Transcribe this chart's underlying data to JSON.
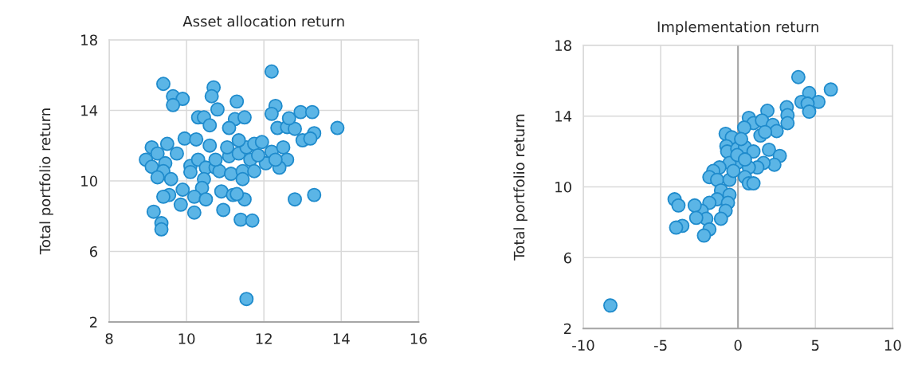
{
  "chart_data": [
    {
      "type": "scatter",
      "title": "Asset allocation return",
      "ylabel": "Total portfolio return",
      "xlim": [
        8,
        16
      ],
      "xticks": [
        8,
        10,
        12,
        14,
        16
      ],
      "ylim": [
        2,
        18
      ],
      "yticks": [
        2,
        6,
        10,
        14,
        18
      ],
      "grid": true,
      "marker": "circle",
      "series": [
        {
          "color": "#5bb5e6",
          "x": [
            12.2,
            9.4,
            10.7,
            9.65,
            9.9,
            9.65,
            10.65,
            10.8,
            11.3,
            12.3,
            12.2,
            12.95,
            13.25,
            10.3,
            10.45,
            10.6,
            11.25,
            11.5,
            11.1,
            12.35,
            12.6,
            12.8,
            12.65,
            13.3,
            13.9,
            13.0,
            13.2,
            9.95,
            10.25,
            10.6,
            9.5,
            9.1,
            9.25,
            9.75,
            8.95,
            9.1,
            9.45,
            9.4,
            9.25,
            9.6,
            10.1,
            10.3,
            10.5,
            10.1,
            10.45,
            10.75,
            10.85,
            11.15,
            11.1,
            11.35,
            11.55,
            11.75,
            11.95,
            11.65,
            11.45,
            11.75,
            12.2,
            12.5,
            12.6,
            12.4,
            12.05,
            11.45,
            10.4,
            9.9,
            9.55,
            9.4,
            10.2,
            10.5,
            10.9,
            11.2,
            11.5,
            11.3,
            9.85,
            9.15,
            10.2,
            10.95,
            9.35,
            9.35,
            11.4,
            11.7,
            12.8,
            13.3,
            11.55,
            11.35,
            11.05,
            11.85,
            10.75,
            12.3
          ],
          "values": [
            16.2,
            15.5,
            15.3,
            14.8,
            14.65,
            14.3,
            14.8,
            14.05,
            14.5,
            14.25,
            13.8,
            13.9,
            13.9,
            13.6,
            13.6,
            13.15,
            13.5,
            13.6,
            13.0,
            13.0,
            13.05,
            12.95,
            13.55,
            12.7,
            13.0,
            12.3,
            12.4,
            12.4,
            12.35,
            12.0,
            12.1,
            11.9,
            11.55,
            11.55,
            11.2,
            10.8,
            11.0,
            10.55,
            10.2,
            10.1,
            10.85,
            11.2,
            10.75,
            10.5,
            10.1,
            10.75,
            10.55,
            10.4,
            11.4,
            11.55,
            11.9,
            12.1,
            12.2,
            11.2,
            10.55,
            10.55,
            11.65,
            11.9,
            11.2,
            10.75,
            11.0,
            10.1,
            9.6,
            9.5,
            9.2,
            9.1,
            9.1,
            8.95,
            9.4,
            9.2,
            8.95,
            9.25,
            8.65,
            8.25,
            8.2,
            8.35,
            7.6,
            7.25,
            7.8,
            7.75,
            8.95,
            9.2,
            3.3,
            12.3,
            11.9,
            11.45,
            11.2,
            11.2
          ]
        }
      ]
    },
    {
      "type": "scatter",
      "title": "Implementation return",
      "ylabel": "Total portfolio return",
      "xlim": [
        -10,
        10
      ],
      "xticks": [
        -10,
        -5,
        0,
        5,
        10
      ],
      "ylim": [
        2,
        18
      ],
      "yticks": [
        2,
        6,
        10,
        14,
        18
      ],
      "grid": true,
      "marker": "circle",
      "ref_lines": [
        {
          "axis": "x",
          "value": 0,
          "color": "#a6a6a6"
        }
      ],
      "series": [
        {
          "color": "#5bb5e6",
          "x": [
            3.9,
            6.0,
            4.6,
            4.1,
            5.2,
            4.5,
            4.6,
            3.15,
            3.2,
            3.2,
            1.9,
            0.7,
            1.0,
            1.55,
            2.25,
            2.5,
            0.4,
            1.45,
            1.75,
            -0.8,
            -0.4,
            -0.75,
            -0.7,
            -0.05,
            0.45,
            1.0,
            2.0,
            2.7,
            2.35,
            1.65,
            1.25,
            0.7,
            -0.05,
            -0.55,
            -1.2,
            -1.6,
            -1.85,
            -1.35,
            -0.55,
            0.45,
            0.7,
            1.0,
            -1.1,
            -0.55,
            -1.35,
            -1.85,
            -0.65,
            -0.8,
            -2.35,
            -2.8,
            -1.1,
            -2.05,
            -2.7,
            -4.1,
            -3.85,
            -3.6,
            -4.0,
            -1.85,
            -2.2,
            -8.25,
            -0.05,
            0.45,
            -0.3,
            0.2
          ],
          "values": [
            16.2,
            15.5,
            15.3,
            14.8,
            14.8,
            14.7,
            14.25,
            14.5,
            14.05,
            13.6,
            14.3,
            13.9,
            13.6,
            13.75,
            13.5,
            13.15,
            13.35,
            12.9,
            13.1,
            13.0,
            12.8,
            12.3,
            12.0,
            12.15,
            12.25,
            12.0,
            12.1,
            11.75,
            11.25,
            11.35,
            11.1,
            11.1,
            11.35,
            11.35,
            11.1,
            10.9,
            10.55,
            10.4,
            10.4,
            10.55,
            10.2,
            10.2,
            9.8,
            9.55,
            9.3,
            9.1,
            9.1,
            8.65,
            8.65,
            8.95,
            8.2,
            8.2,
            8.25,
            9.3,
            8.95,
            7.8,
            7.7,
            7.6,
            7.25,
            3.3,
            11.8,
            11.55,
            10.9,
            12.7
          ]
        }
      ]
    }
  ]
}
